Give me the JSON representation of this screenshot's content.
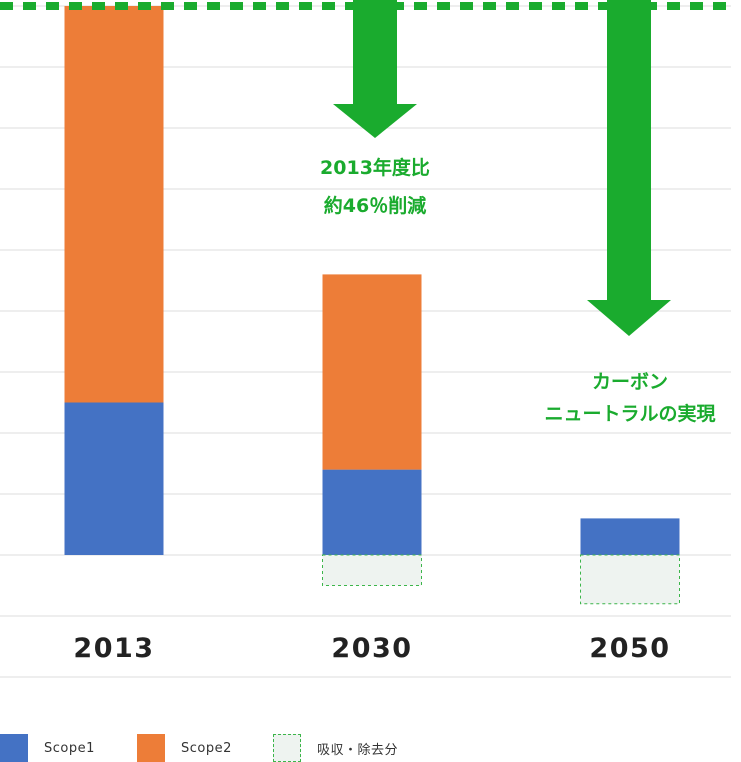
{
  "chart_data": {
    "type": "bar",
    "stacked": true,
    "categories": [
      "2013",
      "2030",
      "2050"
    ],
    "series": [
      {
        "name": "Scope1",
        "values": [
          2.5,
          1.4,
          0.6
        ],
        "color": "#4472c4"
      },
      {
        "name": "Scope2",
        "values": [
          6.5,
          3.2,
          0
        ],
        "color": "#ed7d38"
      },
      {
        "name": "吸収・除去分",
        "values": [
          0,
          -0.5,
          -0.8
        ],
        "color": "#eef3f0",
        "border": "#3cb54a",
        "border_style": "dashed"
      }
    ],
    "ylim": [
      -1,
      9
    ],
    "grid": true,
    "reference_line": {
      "value": 9,
      "color": "#1aab2e",
      "style": "dashed"
    },
    "annotations": [
      {
        "category": "2030",
        "lines": [
          "2013年度比",
          "約46％削減"
        ],
        "color": "#1aab2e",
        "icon": "down-arrow"
      },
      {
        "category": "2050",
        "lines": [
          "カーボン",
          "ニュートラルの実現"
        ],
        "color": "#1aab2e",
        "icon": "down-arrow"
      }
    ],
    "legend_position": "bottom-left"
  },
  "legend": [
    {
      "label": "Scope1",
      "color": "#4472c4",
      "dashed": false
    },
    {
      "label": "Scope2",
      "color": "#ed7d38",
      "dashed": false
    },
    {
      "label": "吸収・除去分",
      "color": "#eef3f0",
      "dashed": true,
      "border": "#3cb54a"
    }
  ]
}
